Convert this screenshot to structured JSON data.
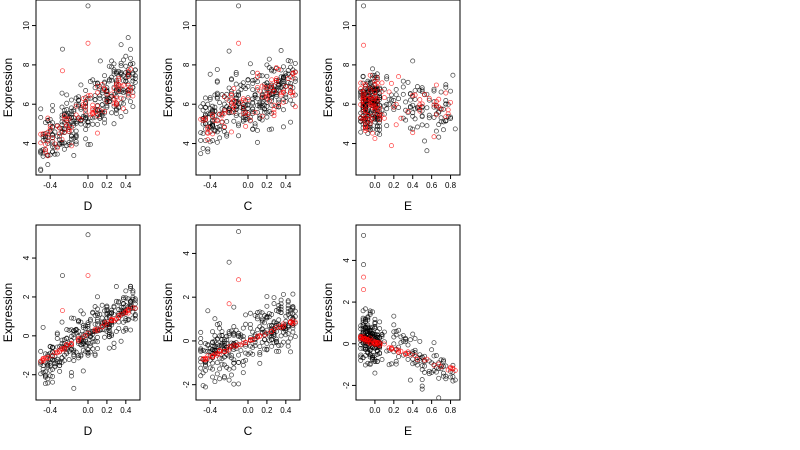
{
  "chart_data": [
    {
      "type": "scatter",
      "xlabel": "D",
      "ylabel": "Expression",
      "xlim": [
        -0.55,
        0.55
      ],
      "ylim": [
        2.4,
        11.3
      ],
      "xticks": [
        -0.4,
        0.0,
        0.2,
        0.4
      ],
      "xtick_labels": [
        "-0.4",
        "0.0",
        "0.2",
        "0.4"
      ],
      "yticks": [
        4,
        6,
        8,
        10
      ],
      "ytick_labels": [
        "4",
        "6",
        "8",
        "10"
      ],
      "series": [
        {
          "color": "#000000",
          "trend": {
            "from": [
              -0.5,
              3.8
            ],
            "to": [
              0.5,
              7.6
            ]
          },
          "spread": 1.2,
          "n": 320,
          "outliers": [
            [
              0.0,
              11.0
            ],
            [
              -0.27,
              8.8
            ],
            [
              0.13,
              8.2
            ]
          ]
        },
        {
          "color": "#ff0000",
          "trend": {
            "from": [
              -0.5,
              4.0
            ],
            "to": [
              0.5,
              7.2
            ]
          },
          "spread": 0.8,
          "n": 90,
          "outliers": [
            [
              0.0,
              9.1
            ],
            [
              -0.27,
              7.7
            ]
          ]
        }
      ]
    },
    {
      "type": "scatter",
      "xlabel": "C",
      "ylabel": "Expression",
      "xlim": [
        -0.55,
        0.55
      ],
      "ylim": [
        2.4,
        11.3
      ],
      "xticks": [
        -0.4,
        0.0,
        0.2,
        0.4
      ],
      "xtick_labels": [
        "-0.4",
        "0.0",
        "0.2",
        "0.4"
      ],
      "yticks": [
        4,
        6,
        8,
        10
      ],
      "ytick_labels": [
        "4",
        "6",
        "8",
        "10"
      ],
      "series": [
        {
          "color": "#000000",
          "trend": {
            "from": [
              -0.5,
              4.9
            ],
            "to": [
              0.5,
              7.2
            ]
          },
          "spread": 1.3,
          "n": 320,
          "outliers": [
            [
              -0.1,
              11.0
            ],
            [
              -0.2,
              8.7
            ]
          ]
        },
        {
          "color": "#ff0000",
          "trend": {
            "from": [
              -0.5,
              5.0
            ],
            "to": [
              0.5,
              7.0
            ]
          },
          "spread": 0.9,
          "n": 90,
          "outliers": [
            [
              -0.1,
              9.1
            ]
          ]
        }
      ]
    },
    {
      "type": "scatter",
      "xlabel": "E",
      "ylabel": "Expression",
      "xlim": [
        -0.2,
        0.9
      ],
      "ylim": [
        2.4,
        11.3
      ],
      "xticks": [
        0.0,
        0.2,
        0.4,
        0.6,
        0.8
      ],
      "xtick_labels": [
        "0.0",
        "0.2",
        "0.4",
        "0.6",
        "0.8"
      ],
      "yticks": [
        4,
        6,
        8,
        10
      ],
      "ytick_labels": [
        "4",
        "6",
        "8",
        "10"
      ],
      "series": [
        {
          "color": "#000000",
          "trend": {
            "from": [
              -0.15,
              6.0
            ],
            "to": [
              0.85,
              5.8
            ]
          },
          "spread": 1.3,
          "n": 300,
          "cluster_x": [
            -0.15,
            0.05
          ],
          "outliers": [
            [
              -0.12,
              11.0
            ],
            [
              0.4,
              8.2
            ]
          ]
        },
        {
          "color": "#ff0000",
          "trend": {
            "from": [
              -0.15,
              6.0
            ],
            "to": [
              0.85,
              5.9
            ]
          },
          "spread": 1.1,
          "n": 110,
          "cluster_x": [
            -0.15,
            0.05
          ],
          "outliers": [
            [
              -0.12,
              9.0
            ]
          ]
        }
      ]
    },
    {
      "type": "scatter",
      "xlabel": "D",
      "ylabel": "Expression",
      "xlim": [
        -0.55,
        0.55
      ],
      "ylim": [
        -3.3,
        5.7
      ],
      "xticks": [
        -0.4,
        0.0,
        0.2,
        0.4
      ],
      "xtick_labels": [
        "-0.4",
        "0.0",
        "0.2",
        "0.4"
      ],
      "yticks": [
        -2,
        0,
        2,
        4
      ],
      "ytick_labels": [
        "-2",
        "0",
        "2",
        "4"
      ],
      "series": [
        {
          "color": "#000000",
          "trend": {
            "from": [
              -0.5,
              -1.6
            ],
            "to": [
              0.5,
              1.7
            ]
          },
          "spread": 1.0,
          "n": 320,
          "outliers": [
            [
              0.0,
              5.2
            ],
            [
              -0.27,
              3.1
            ]
          ]
        },
        {
          "color": "#ff0000",
          "trend": {
            "from": [
              -0.5,
              -1.3
            ],
            "to": [
              0.5,
              1.5
            ]
          },
          "spread": 0.08,
          "n": 60,
          "outliers": [
            [
              0.0,
              3.1
            ],
            [
              -0.27,
              1.3
            ]
          ]
        }
      ]
    },
    {
      "type": "scatter",
      "xlabel": "C",
      "ylabel": "Expression",
      "xlim": [
        -0.55,
        0.55
      ],
      "ylim": [
        -2.7,
        5.3
      ],
      "xticks": [
        -0.4,
        0.0,
        0.2,
        0.4
      ],
      "xtick_labels": [
        "-0.4",
        "0.0",
        "0.2",
        "0.4"
      ],
      "yticks": [
        -2,
        0,
        2,
        4
      ],
      "ytick_labels": [
        "-2",
        "0",
        "2",
        "4"
      ],
      "series": [
        {
          "color": "#000000",
          "trend": {
            "from": [
              -0.5,
              -0.8
            ],
            "to": [
              0.5,
              1.0
            ]
          },
          "spread": 1.0,
          "n": 320,
          "outliers": [
            [
              -0.1,
              5.0
            ],
            [
              -0.2,
              3.6
            ]
          ]
        },
        {
          "color": "#ff0000",
          "trend": {
            "from": [
              -0.5,
              -0.9
            ],
            "to": [
              0.5,
              0.9
            ]
          },
          "spread": 0.08,
          "n": 60,
          "outliers": [
            [
              -0.1,
              2.8
            ],
            [
              -0.2,
              1.7
            ]
          ]
        }
      ]
    },
    {
      "type": "scatter",
      "xlabel": "E",
      "ylabel": "Expression",
      "xlim": [
        -0.2,
        0.9
      ],
      "ylim": [
        -2.7,
        5.7
      ],
      "xticks": [
        0.0,
        0.2,
        0.4,
        0.6,
        0.8
      ],
      "xtick_labels": [
        "0.0",
        "0.2",
        "0.4",
        "0.6",
        "0.8"
      ],
      "yticks": [
        -2,
        0,
        2,
        4
      ],
      "ytick_labels": [
        "-2",
        "0",
        "2",
        "4"
      ],
      "series": [
        {
          "color": "#000000",
          "trend": {
            "from": [
              -0.15,
              0.5
            ],
            "to": [
              0.85,
              -1.4
            ]
          },
          "spread": 1.0,
          "n": 300,
          "cluster_x": [
            -0.15,
            0.05
          ],
          "outliers": [
            [
              -0.12,
              5.2
            ],
            [
              -0.12,
              3.8
            ]
          ]
        },
        {
          "color": "#ff0000",
          "trend": {
            "from": [
              -0.15,
              0.3
            ],
            "to": [
              0.85,
              -1.3
            ]
          },
          "spread": 0.1,
          "n": 70,
          "cluster_x": [
            -0.15,
            0.05
          ],
          "outliers": [
            [
              -0.12,
              3.2
            ],
            [
              -0.12,
              2.6
            ]
          ]
        }
      ]
    }
  ]
}
